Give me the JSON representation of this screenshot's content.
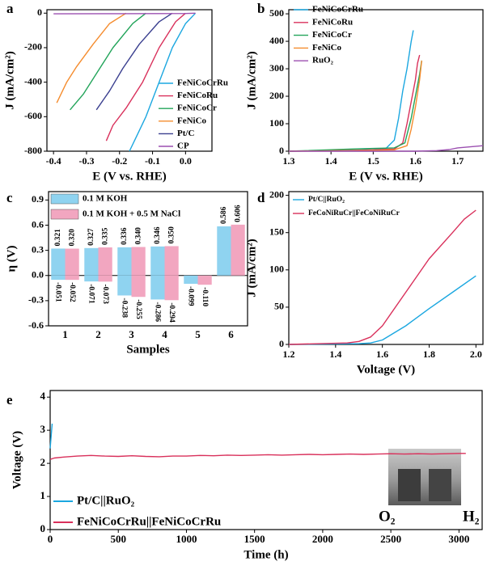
{
  "chart_data": [
    {
      "type": "line",
      "label": "a",
      "xlabel": "E (V vs. RHE)",
      "ylabel": "J (mA/cm²)",
      "xlim": [
        -0.42,
        0.08
      ],
      "xticks": [
        -0.4,
        -0.3,
        -0.2,
        -0.1,
        {
          "value": 0,
          "label": "0.0"
        }
      ],
      "ylim": [
        -800,
        20
      ],
      "yticks": [
        -800,
        -600,
        -400,
        -200,
        0
      ],
      "series": [
        {
          "name": "FeNiCoCrRu",
          "color": "#1ba7e0",
          "x": [
            0.03,
            0.0,
            -0.04,
            -0.08,
            -0.12,
            -0.15,
            -0.17
          ],
          "values": [
            0,
            -60,
            -200,
            -400,
            -600,
            -720,
            -800
          ]
        },
        {
          "name": "FeNiCoRu",
          "color": "#d9305b",
          "x": [
            0.0,
            -0.03,
            -0.08,
            -0.13,
            -0.18,
            -0.22,
            -0.24
          ],
          "values": [
            0,
            -50,
            -200,
            -400,
            -550,
            -650,
            -740
          ]
        },
        {
          "name": "FeNiCoCr",
          "color": "#22a45a",
          "x": [
            -0.12,
            -0.16,
            -0.22,
            -0.27,
            -0.31,
            -0.35
          ],
          "values": [
            0,
            -60,
            -200,
            -350,
            -470,
            -560
          ]
        },
        {
          "name": "FeNiCo",
          "color": "#f58c2e",
          "x": [
            -0.18,
            -0.23,
            -0.28,
            -0.33,
            -0.36,
            -0.39
          ],
          "values": [
            0,
            -60,
            -180,
            -310,
            -400,
            -520
          ]
        },
        {
          "name": "Pt/C",
          "color": "#3a3f8f",
          "x": [
            -0.04,
            -0.08,
            -0.14,
            -0.19,
            -0.23,
            -0.27
          ],
          "values": [
            0,
            -50,
            -180,
            -320,
            -450,
            -560
          ]
        },
        {
          "name": "CP",
          "color": "#9b4fb0",
          "x": [
            -0.4,
            -0.2,
            0.0,
            0.03
          ],
          "values": [
            -4,
            -3,
            -2,
            0
          ]
        }
      ]
    },
    {
      "type": "line",
      "label": "b",
      "xlabel": "E (V vs. RHE)",
      "ylabel": "J (mA/cm²)",
      "xlim": [
        1.3,
        1.76
      ],
      "xticks": [
        1.3,
        1.4,
        1.5,
        1.6,
        1.7
      ],
      "ylim": [
        0,
        515
      ],
      "yticks": [
        0,
        100,
        200,
        300,
        400,
        500
      ],
      "series": [
        {
          "name": "FeNiCoCrRu",
          "color": "#1ba7e0",
          "x": [
            1.3,
            1.4,
            1.45,
            1.5,
            1.53,
            1.55,
            1.56,
            1.57,
            1.58,
            1.585,
            1.59,
            1.595
          ],
          "values": [
            0,
            2,
            4,
            6,
            10,
            40,
            120,
            220,
            300,
            350,
            400,
            440
          ]
        },
        {
          "name": "FeNiCoRu",
          "color": "#d9305b",
          "x": [
            1.3,
            1.45,
            1.5,
            1.55,
            1.57,
            1.58,
            1.59,
            1.6,
            1.605,
            1.61
          ],
          "values": [
            0,
            3,
            5,
            8,
            30,
            100,
            180,
            260,
            320,
            350
          ]
        },
        {
          "name": "FeNiCoCr",
          "color": "#22a45a",
          "x": [
            1.3,
            1.45,
            1.5,
            1.55,
            1.575,
            1.59,
            1.6,
            1.61,
            1.615
          ],
          "values": [
            0,
            8,
            10,
            12,
            30,
            120,
            200,
            280,
            330
          ]
        },
        {
          "name": "FeNiCo",
          "color": "#f58c2e",
          "x": [
            1.3,
            1.5,
            1.55,
            1.58,
            1.59,
            1.6,
            1.61,
            1.615
          ],
          "values": [
            0,
            3,
            5,
            20,
            80,
            160,
            260,
            330
          ]
        },
        {
          "name": "RuO₂",
          "color": "#9b4fb0",
          "x": [
            1.3,
            1.6,
            1.65,
            1.68,
            1.7,
            1.76
          ],
          "values": [
            0,
            0,
            2,
            6,
            12,
            20
          ]
        }
      ]
    },
    {
      "type": "bar",
      "label": "c",
      "xlabel": "Samples",
      "ylabel": "η (V)",
      "categories": [
        "1",
        "2",
        "3",
        "4",
        "5",
        "6"
      ],
      "ylim": [
        -0.6,
        1.0
      ],
      "yticks": [
        -0.6,
        -0.3,
        {
          "value": 0,
          "label": "0.0"
        },
        0.3,
        0.6,
        0.9
      ],
      "series": [
        {
          "name": "0.1 M KOH",
          "color": "#8fd3f0",
          "values": [
            0.321,
            0.327,
            0.336,
            0.346,
            null,
            0.586
          ],
          "value_labels": [
            "0.321",
            "0.327",
            "0.336",
            "0.346",
            null,
            "0.586"
          ],
          "her_values": [
            -0.051,
            -0.071,
            -0.238,
            -0.286,
            -0.099,
            null
          ],
          "her_value_labels": [
            "-0.051",
            "-0.071",
            "-0.238",
            "-0.286",
            "-0.099",
            null
          ]
        },
        {
          "name": "0.1 M KOH + 0.5 M NaCl",
          "color": "#f2a6c0",
          "values": [
            0.32,
            0.335,
            0.34,
            0.35,
            null,
            0.606
          ],
          "value_labels": [
            "0.320",
            "0.335",
            "0.340",
            "0.350",
            null,
            "0.606"
          ],
          "her_values": [
            -0.052,
            -0.073,
            -0.255,
            -0.294,
            -0.11,
            null
          ],
          "her_value_labels": [
            "-0.052",
            "-0.073",
            "-0.255",
            "-0.294",
            "-0.110",
            null
          ]
        }
      ]
    },
    {
      "type": "line",
      "label": "d",
      "xlabel": "Voltage (V)",
      "ylabel": "J (mA/cm²)",
      "xlim": [
        1.2,
        2.03
      ],
      "xticks": [
        1.2,
        1.4,
        1.6,
        1.8,
        {
          "value": 2,
          "label": "2.0"
        }
      ],
      "ylim": [
        0,
        205
      ],
      "yticks": [
        0,
        50,
        100,
        150,
        200
      ],
      "series": [
        {
          "name": "Pt/C||RuO₂",
          "color": "#1ba7e0",
          "x": [
            1.2,
            1.5,
            1.55,
            1.6,
            1.7,
            1.8,
            1.9,
            2.0
          ],
          "values": [
            0,
            1,
            2,
            6,
            25,
            48,
            70,
            92
          ]
        },
        {
          "name": "FeCoNiRuCr||FeCoNiRuCr",
          "color": "#d9305b",
          "x": [
            1.2,
            1.45,
            1.5,
            1.55,
            1.6,
            1.7,
            1.8,
            1.9,
            1.95,
            2.0
          ],
          "values": [
            0,
            2,
            4,
            10,
            25,
            70,
            115,
            150,
            168,
            180
          ]
        }
      ]
    },
    {
      "type": "line",
      "label": "e",
      "xlabel": "Time (h)",
      "ylabel": "Voltage (V)",
      "xlim": [
        0,
        3170
      ],
      "xticks": [
        0,
        500,
        1000,
        1500,
        2000,
        2500,
        3000
      ],
      "ylim": [
        0,
        4.2
      ],
      "yticks": [
        0,
        1,
        2,
        3,
        4
      ],
      "annotations": [
        "O₂",
        "H₂"
      ],
      "series": [
        {
          "name": "Pt/C||RuO₂",
          "color": "#1ba7e0",
          "x": [
            0,
            3,
            6,
            9,
            12,
            15
          ],
          "values": [
            2.45,
            2.6,
            2.75,
            2.9,
            3.05,
            3.2
          ]
        },
        {
          "name": "FeNiCoCrRu||FeNiCoCrRu",
          "color": "#d9305b",
          "x": [
            0,
            30,
            100,
            200,
            300,
            400,
            500,
            600,
            700,
            800,
            900,
            1000,
            1100,
            1200,
            1300,
            1400,
            1500,
            1600,
            1700,
            1800,
            1900,
            2000,
            2100,
            2200,
            2300,
            2400,
            2500,
            2600,
            2700,
            2800,
            2900,
            3000,
            3050
          ],
          "values": [
            2.12,
            2.16,
            2.19,
            2.22,
            2.24,
            2.22,
            2.21,
            2.23,
            2.21,
            2.2,
            2.22,
            2.22,
            2.24,
            2.23,
            2.25,
            2.24,
            2.25,
            2.26,
            2.25,
            2.26,
            2.27,
            2.26,
            2.27,
            2.28,
            2.27,
            2.28,
            2.29,
            2.28,
            2.29,
            2.28,
            2.29,
            2.3,
            2.3
          ]
        }
      ]
    }
  ]
}
